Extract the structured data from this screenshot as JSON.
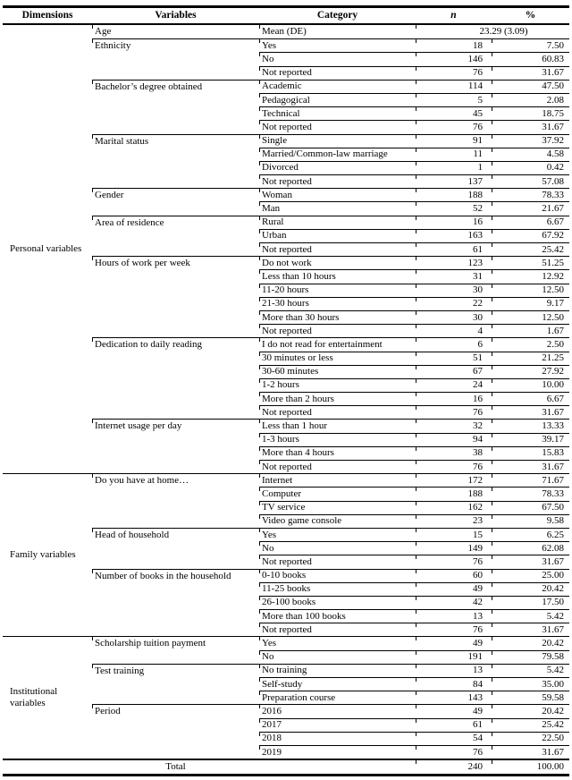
{
  "table": {
    "headers": {
      "dimensions": "Dimensions",
      "variables": "Variables",
      "category": "Category",
      "n": "n",
      "pct": "%"
    },
    "sections": [
      {
        "dimension": "Personal variables",
        "variables": [
          {
            "name": "Age",
            "rows": [
              {
                "category": "Mean (DE)",
                "span": "23.29 (3.09)"
              }
            ]
          },
          {
            "name": "Ethnicity",
            "rows": [
              {
                "category": "Yes",
                "n": "18",
                "pct": "7.50"
              },
              {
                "category": "No",
                "n": "146",
                "pct": "60.83"
              },
              {
                "category": "Not reported",
                "n": "76",
                "pct": "31.67"
              }
            ]
          },
          {
            "name": "Bachelor’s degree obtained",
            "rows": [
              {
                "category": "Academic",
                "n": "114",
                "pct": "47.50"
              },
              {
                "category": "Pedagogical",
                "n": "5",
                "pct": "2.08"
              },
              {
                "category": "Technical",
                "n": "45",
                "pct": "18.75"
              },
              {
                "category": "Not reported",
                "n": "76",
                "pct": "31.67"
              }
            ]
          },
          {
            "name": "Marital status",
            "rows": [
              {
                "category": "Single",
                "n": "91",
                "pct": "37.92"
              },
              {
                "category": "Married/Common-law marriage",
                "n": "11",
                "pct": "4.58"
              },
              {
                "category": "Divorced",
                "n": "1",
                "pct": "0.42"
              },
              {
                "category": "Not reported",
                "n": "137",
                "pct": "57.08"
              }
            ]
          },
          {
            "name": "Gender",
            "rows": [
              {
                "category": "Woman",
                "n": "188",
                "pct": "78.33"
              },
              {
                "category": "Man",
                "n": "52",
                "pct": "21.67"
              }
            ]
          },
          {
            "name": "Area of residence",
            "rows": [
              {
                "category": "Rural",
                "n": "16",
                "pct": "6.67"
              },
              {
                "category": "Urban",
                "n": "163",
                "pct": "67.92"
              },
              {
                "category": "Not reported",
                "n": "61",
                "pct": "25.42"
              }
            ]
          },
          {
            "name": "Hours of work per week",
            "rows": [
              {
                "category": "Do not work",
                "n": "123",
                "pct": "51.25"
              },
              {
                "category": "Less than 10 hours",
                "n": "31",
                "pct": "12.92"
              },
              {
                "category": "11-20 hours",
                "n": "30",
                "pct": "12.50"
              },
              {
                "category": "21-30 hours",
                "n": "22",
                "pct": "9.17"
              },
              {
                "category": "More than 30 hours",
                "n": "30",
                "pct": "12.50"
              },
              {
                "category": "Not reported",
                "n": "4",
                "pct": "1.67"
              }
            ]
          },
          {
            "name": "Dedication to daily reading",
            "rows": [
              {
                "category": "I do not read for entertainment",
                "n": "6",
                "pct": "2.50"
              },
              {
                "category": "30 minutes or less",
                "n": "51",
                "pct": "21.25"
              },
              {
                "category": "30-60 minutes",
                "n": "67",
                "pct": "27.92"
              },
              {
                "category": "1-2 hours",
                "n": "24",
                "pct": "10.00"
              },
              {
                "category": "More than 2 hours",
                "n": "16",
                "pct": "6.67"
              },
              {
                "category": "Not reported",
                "n": "76",
                "pct": "31.67"
              }
            ]
          },
          {
            "name": "Internet usage per day",
            "rows": [
              {
                "category": "Less than 1 hour",
                "n": "32",
                "pct": "13.33"
              },
              {
                "category": "1-3 hours",
                "n": "94",
                "pct": "39.17"
              },
              {
                "category": "More than 4 hours",
                "n": "38",
                "pct": "15.83"
              },
              {
                "category": "Not reported",
                "n": "76",
                "pct": "31.67"
              }
            ]
          }
        ]
      },
      {
        "dimension": "Family variables",
        "variables": [
          {
            "name": "Do you have at home…",
            "rows": [
              {
                "category": "Internet",
                "n": "172",
                "pct": "71.67"
              },
              {
                "category": "Computer",
                "n": "188",
                "pct": "78.33"
              },
              {
                "category": "TV service",
                "n": "162",
                "pct": "67.50"
              },
              {
                "category": "Video game console",
                "n": "23",
                "pct": "9.58"
              }
            ]
          },
          {
            "name": "Head of household",
            "rows": [
              {
                "category": "Yes",
                "n": "15",
                "pct": "6.25"
              },
              {
                "category": "No",
                "n": "149",
                "pct": "62.08"
              },
              {
                "category": "Not reported",
                "n": "76",
                "pct": "31.67"
              }
            ]
          },
          {
            "name": "Number of books in the household",
            "rows": [
              {
                "category": "0-10 books",
                "n": "60",
                "pct": "25.00"
              },
              {
                "category": "11-25 books",
                "n": "49",
                "pct": "20.42"
              },
              {
                "category": "26-100 books",
                "n": "42",
                "pct": "17.50"
              },
              {
                "category": "More than 100 books",
                "n": "13",
                "pct": "5.42"
              },
              {
                "category": "Not reported",
                "n": "76",
                "pct": "31.67"
              }
            ]
          }
        ]
      },
      {
        "dimension": "Institutional variables",
        "variables": [
          {
            "name": "Scholarship tuition payment",
            "rows": [
              {
                "category": "Yes",
                "n": "49",
                "pct": "20.42"
              },
              {
                "category": "No",
                "n": "191",
                "pct": "79.58"
              }
            ]
          },
          {
            "name": "Test training",
            "rows": [
              {
                "category": "No training",
                "n": "13",
                "pct": "5.42"
              },
              {
                "category": "Self-study",
                "n": "84",
                "pct": "35.00"
              },
              {
                "category": "Preparation course",
                "n": "143",
                "pct": "59.58"
              }
            ]
          },
          {
            "name": "Period",
            "rows": [
              {
                "category": "2016",
                "n": "49",
                "pct": "20.42"
              },
              {
                "category": "2017",
                "n": "61",
                "pct": "25.42"
              },
              {
                "category": "2018",
                "n": "54",
                "pct": "22.50"
              },
              {
                "category": "2019",
                "n": "76",
                "pct": "31.67"
              }
            ]
          }
        ]
      }
    ],
    "total": {
      "label": "Total",
      "n": "240",
      "pct": "100.00"
    }
  }
}
